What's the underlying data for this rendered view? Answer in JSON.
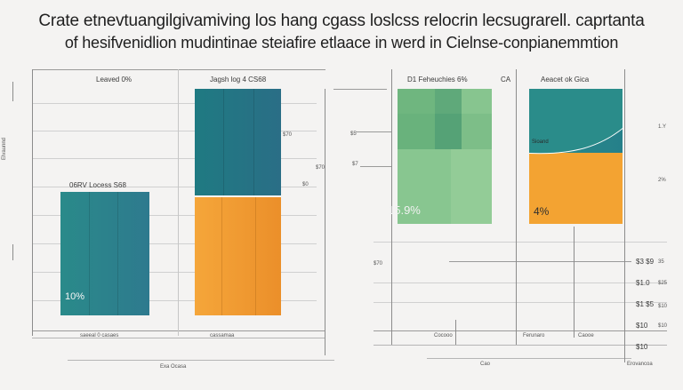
{
  "title_line1": "Crate etnevtuangilgivamiving los hang cgass loslcss relocrin lecsugrarell. caprtanta",
  "title_line2": "of hesifvenidlion mudintinae steiafire etlaace in werd in Cielnse-conpianemmtion",
  "chart_data": [
    {
      "type": "bar",
      "panel": "left",
      "bars": [
        {
          "header": "Leaved 0%",
          "top_label": "06RV Locess S68",
          "value_label": "10%",
          "colors": [
            "#2a8a8a",
            "#2e7a8e"
          ],
          "value_fraction": 0.55
        },
        {
          "header": "Jagsh log 4 CS68",
          "value_label": "",
          "segments": [
            {
              "color": "#1f7a82",
              "fraction": 0.48
            },
            {
              "color": "#f0a030",
              "fraction": 0.52
            }
          ]
        }
      ],
      "axis_labels": [
        "$70",
        "$70",
        "$0"
      ],
      "bottom_labels": [
        "saeeal 0 casaes",
        "cassamaa",
        "Exa Ocasa"
      ],
      "side_annotation": "Elvaunnd"
    },
    {
      "type": "bar",
      "panel": "right",
      "bars": [
        {
          "header": "D1 Feheuchies 6%",
          "value_label": "15.9%",
          "colors": [
            "#7fbf86",
            "#66b07a",
            "#4f9f74"
          ]
        },
        {
          "header": "CA",
          "value_label": "",
          "colors": []
        },
        {
          "header": "Aeacet ok Gica",
          "value_label": "4%",
          "segments": [
            {
              "color": "#2a8c8a",
              "fraction": 0.47
            },
            {
              "color": "#f3a332",
              "fraction": 0.53
            }
          ],
          "inner_label": "Sioand"
        }
      ],
      "axis_labels": [
        "$5",
        "$7",
        "$70"
      ],
      "right_labels": [
        "$3 $9",
        "$1.0",
        "$1 $5",
        "$10",
        "$10"
      ],
      "right_small_labels": [
        "1.Y",
        "2%",
        "35",
        "$25",
        "$10",
        "$10"
      ],
      "bottom_labels": [
        "Cocooo",
        "Ferunaro",
        "Caooe",
        "Cao",
        "Erovancoa"
      ]
    }
  ]
}
